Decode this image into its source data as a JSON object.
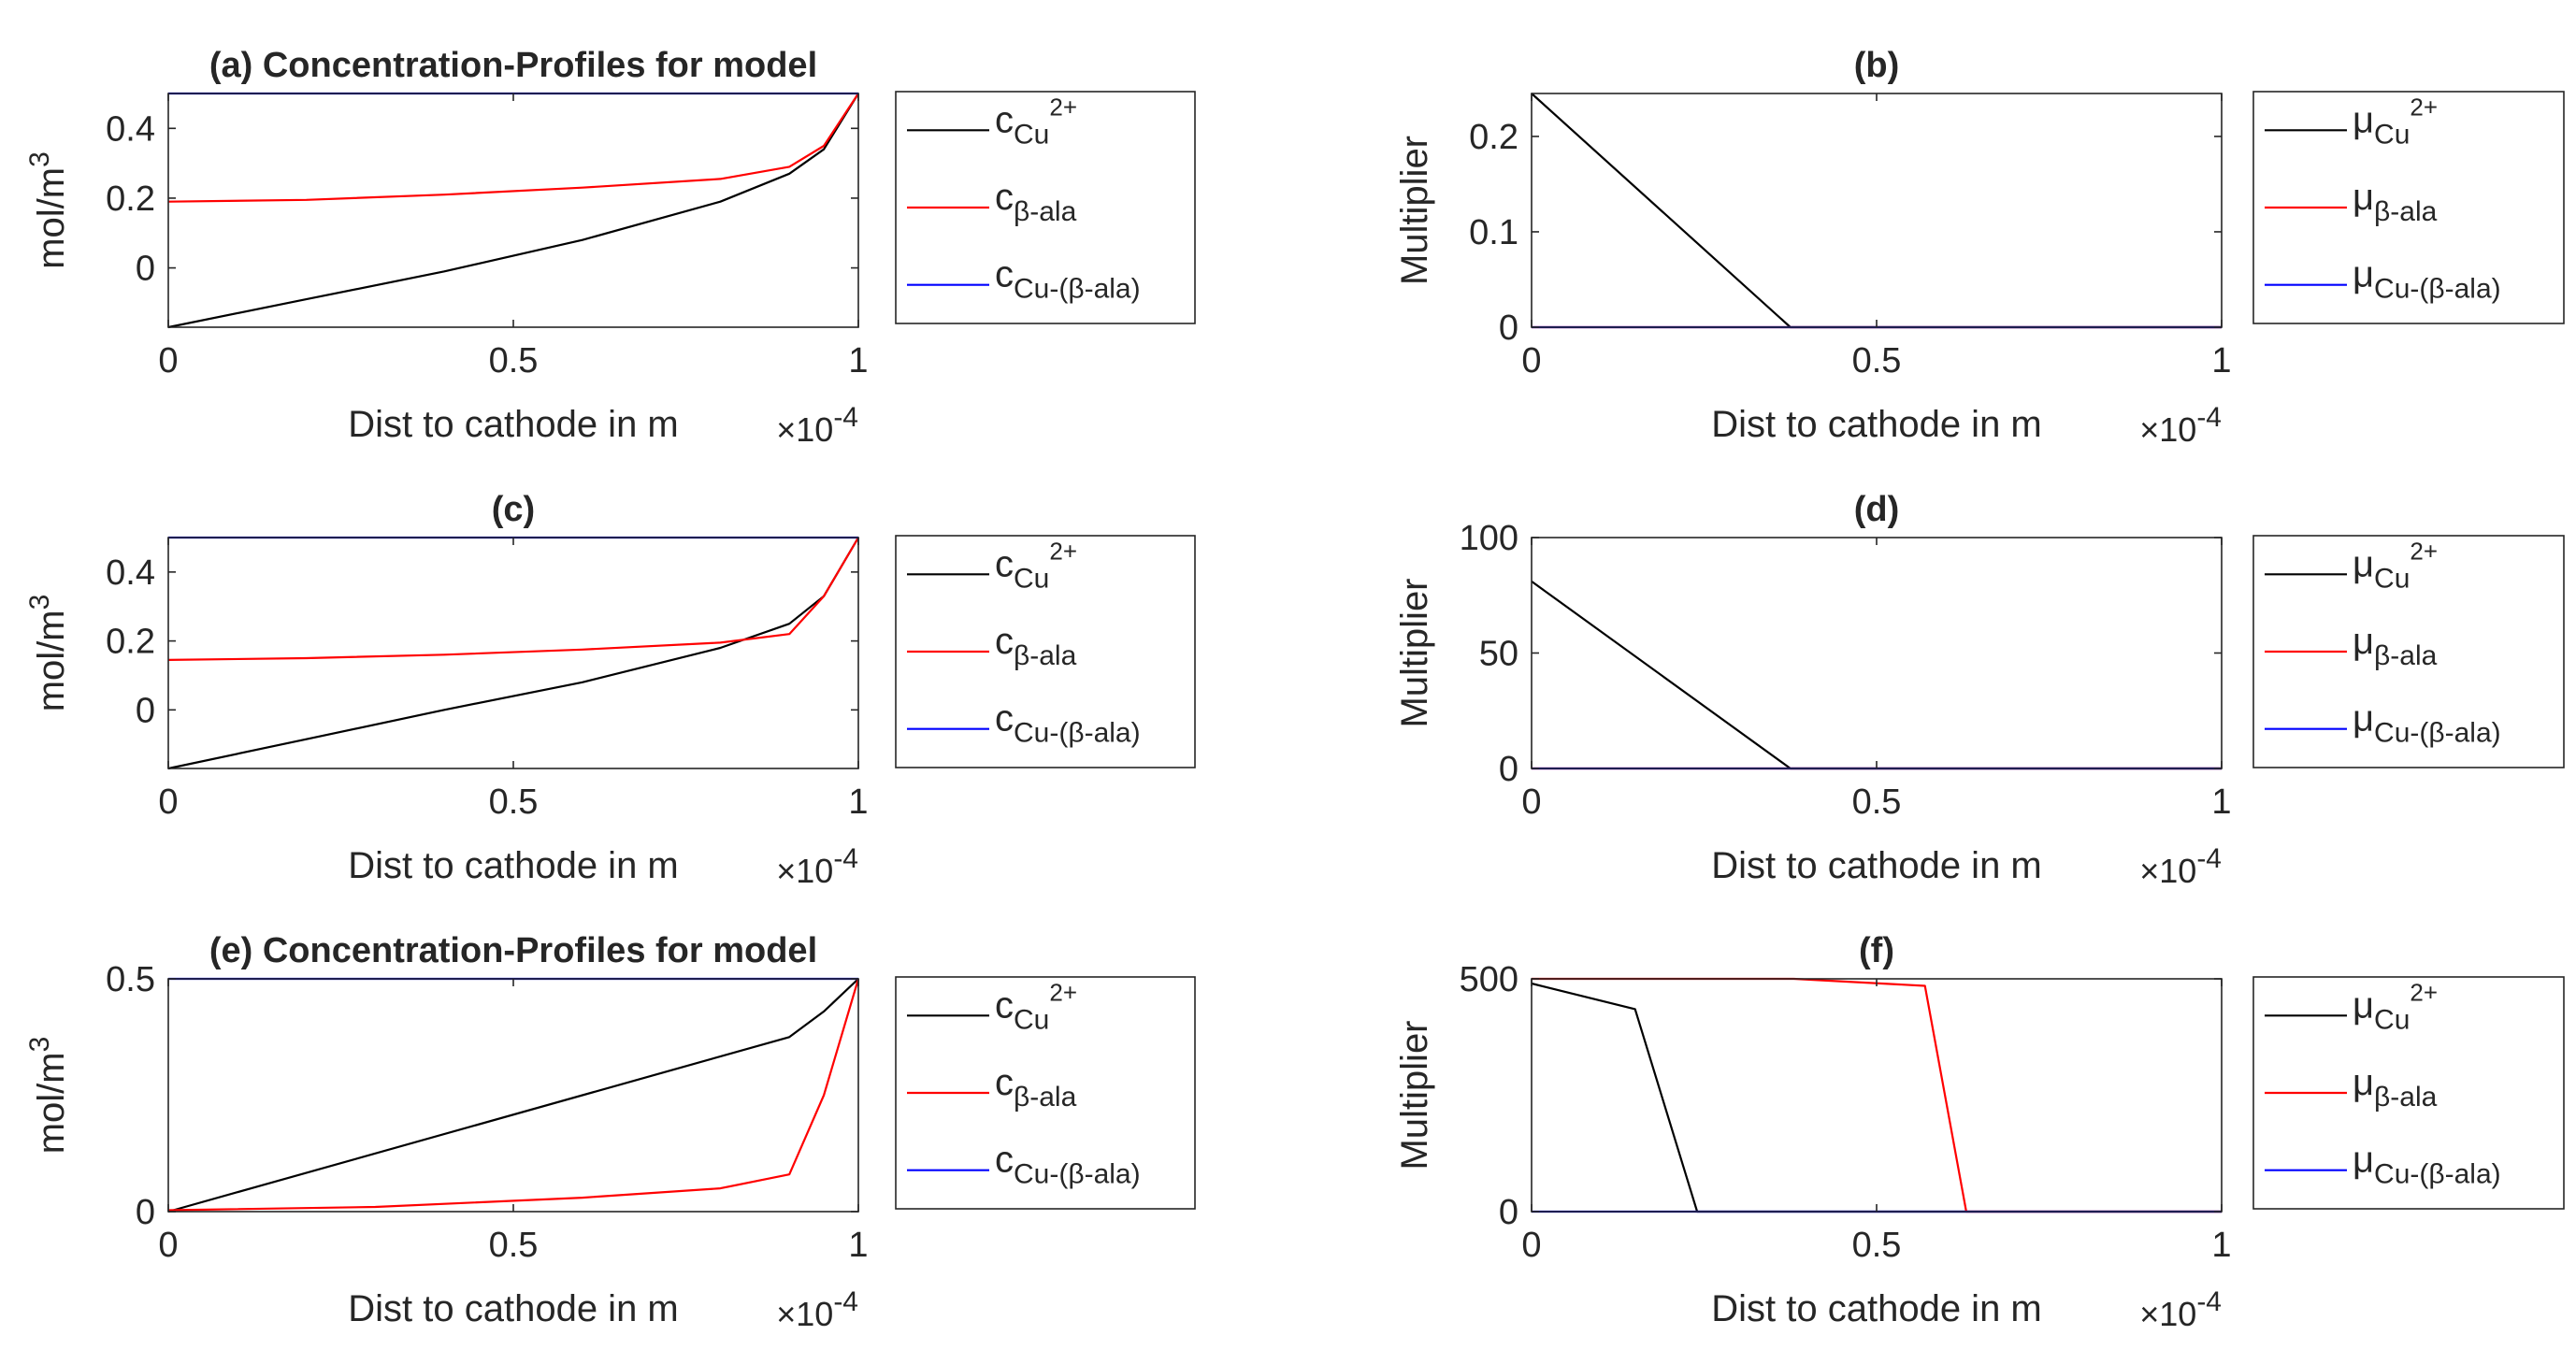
{
  "chart_data": [
    {
      "id": "a",
      "type": "line",
      "title": "(a) Concentration-Profiles for model",
      "xlabel": "Dist to cathode in m",
      "x_exponent": "×10-4",
      "ylabel": "mol/m3",
      "xlim": [
        0,
        1
      ],
      "ylim": [
        -0.17,
        0.5
      ],
      "xticks": [
        "0",
        "0.5",
        "1"
      ],
      "yticks": [
        {
          "v": 0,
          "label": "0"
        },
        {
          "v": 0.2,
          "label": "0.2"
        },
        {
          "v": 0.4,
          "label": "0.4"
        }
      ],
      "legend": {
        "position": "outside-right"
      },
      "series": [
        {
          "name": "c",
          "sub": "Cu",
          "sup": "2+",
          "greek": false,
          "color": "#000000",
          "x": [
            0,
            0.2,
            0.4,
            0.6,
            0.8,
            0.9,
            0.95,
            1.0
          ],
          "y": [
            -0.17,
            -0.09,
            -0.01,
            0.08,
            0.19,
            0.27,
            0.34,
            0.5
          ]
        },
        {
          "name": "c",
          "sub": "β-ala",
          "sup": "",
          "greek": false,
          "color": "#ff0000",
          "x": [
            0,
            0.2,
            0.4,
            0.6,
            0.8,
            0.9,
            0.95,
            1.0
          ],
          "y": [
            0.19,
            0.195,
            0.21,
            0.23,
            0.255,
            0.29,
            0.35,
            0.5
          ]
        },
        {
          "name": "c",
          "sub": "Cu-(β-ala)",
          "sup": "",
          "greek": false,
          "color": "#0000ff",
          "x": [
            0,
            1
          ],
          "y": [
            0.5,
            0.5
          ]
        }
      ]
    },
    {
      "id": "b",
      "type": "line",
      "title": "(b)",
      "xlabel": "Dist to cathode in m",
      "x_exponent": "×10-4",
      "ylabel": "Multiplier",
      "xlim": [
        0,
        1
      ],
      "ylim": [
        0,
        0.245
      ],
      "xticks": [
        "0",
        "0.5",
        "1"
      ],
      "yticks": [
        {
          "v": 0,
          "label": "0"
        },
        {
          "v": 0.1,
          "label": "0.1"
        },
        {
          "v": 0.2,
          "label": "0.2"
        }
      ],
      "legend": {
        "position": "outside-right"
      },
      "series": [
        {
          "name": "μ",
          "sub": "Cu",
          "sup": "2+",
          "greek": true,
          "color": "#000000",
          "x": [
            0,
            0.375,
            1.0
          ],
          "y": [
            0.245,
            0,
            0
          ]
        },
        {
          "name": "μ",
          "sub": "β-ala",
          "sup": "",
          "greek": true,
          "color": "#ff0000",
          "x": [
            0,
            1
          ],
          "y": [
            0,
            0
          ]
        },
        {
          "name": "μ",
          "sub": "Cu-(β-ala)",
          "sup": "",
          "greek": true,
          "color": "#0000ff",
          "x": [
            0,
            1
          ],
          "y": [
            0,
            0
          ]
        }
      ]
    },
    {
      "id": "c",
      "type": "line",
      "title": "(c)",
      "xlabel": "Dist to cathode in m",
      "x_exponent": "×10-4",
      "ylabel": "mol/m3",
      "xlim": [
        0,
        1
      ],
      "ylim": [
        -0.17,
        0.5
      ],
      "xticks": [
        "0",
        "0.5",
        "1"
      ],
      "yticks": [
        {
          "v": 0,
          "label": "0"
        },
        {
          "v": 0.2,
          "label": "0.2"
        },
        {
          "v": 0.4,
          "label": "0.4"
        }
      ],
      "legend": {
        "position": "outside-right"
      },
      "series": [
        {
          "name": "c",
          "sub": "Cu",
          "sup": "2+",
          "greek": false,
          "color": "#000000",
          "x": [
            0,
            0.2,
            0.4,
            0.6,
            0.8,
            0.9,
            0.95,
            1.0
          ],
          "y": [
            -0.17,
            -0.085,
            0.0,
            0.08,
            0.18,
            0.25,
            0.33,
            0.5
          ]
        },
        {
          "name": "c",
          "sub": "β-ala",
          "sup": "",
          "greek": false,
          "color": "#ff0000",
          "x": [
            0,
            0.2,
            0.4,
            0.6,
            0.8,
            0.9,
            0.95,
            1.0
          ],
          "y": [
            0.145,
            0.15,
            0.16,
            0.175,
            0.195,
            0.22,
            0.33,
            0.5
          ]
        },
        {
          "name": "c",
          "sub": "Cu-(β-ala)",
          "sup": "",
          "greek": false,
          "color": "#0000ff",
          "x": [
            0,
            1
          ],
          "y": [
            0.5,
            0.5
          ]
        }
      ]
    },
    {
      "id": "d",
      "type": "line",
      "title": "(d)",
      "xlabel": "Dist to cathode in m",
      "x_exponent": "×10-4",
      "ylabel": "Multiplier",
      "xlim": [
        0,
        1
      ],
      "ylim": [
        0,
        100
      ],
      "xticks": [
        "0",
        "0.5",
        "1"
      ],
      "yticks": [
        {
          "v": 0,
          "label": "0"
        },
        {
          "v": 50,
          "label": "50"
        },
        {
          "v": 100,
          "label": "100"
        }
      ],
      "legend": {
        "position": "outside-right"
      },
      "series": [
        {
          "name": "μ",
          "sub": "Cu",
          "sup": "2+",
          "greek": true,
          "color": "#000000",
          "x": [
            0,
            0.375,
            1.0
          ],
          "y": [
            81,
            0,
            0
          ]
        },
        {
          "name": "μ",
          "sub": "β-ala",
          "sup": "",
          "greek": true,
          "color": "#ff0000",
          "x": [
            0,
            1
          ],
          "y": [
            0,
            0
          ]
        },
        {
          "name": "μ",
          "sub": "Cu-(β-ala)",
          "sup": "",
          "greek": true,
          "color": "#0000ff",
          "x": [
            0,
            1
          ],
          "y": [
            0,
            0
          ]
        }
      ]
    },
    {
      "id": "e",
      "type": "line",
      "title": "(e) Concentration-Profiles for model",
      "xlabel": "Dist to cathode in m",
      "x_exponent": "×10-4",
      "ylabel": "mol/m3",
      "xlim": [
        0,
        1
      ],
      "ylim": [
        0,
        0.5
      ],
      "xticks": [
        "0",
        "0.5",
        "1"
      ],
      "yticks": [
        {
          "v": 0,
          "label": "0"
        },
        {
          "v": 0.5,
          "label": "0.5"
        }
      ],
      "legend": {
        "position": "outside-right"
      },
      "series": [
        {
          "name": "c",
          "sub": "Cu",
          "sup": "2+",
          "greek": false,
          "color": "#000000",
          "x": [
            0,
            0.9,
            0.95,
            1.0
          ],
          "y": [
            0.0,
            0.375,
            0.43,
            0.5
          ]
        },
        {
          "name": "c",
          "sub": "β-ala",
          "sup": "",
          "greek": false,
          "color": "#ff0000",
          "x": [
            0,
            0.3,
            0.6,
            0.8,
            0.9,
            0.95,
            1.0
          ],
          "y": [
            0.003,
            0.01,
            0.03,
            0.05,
            0.08,
            0.25,
            0.5
          ]
        },
        {
          "name": "c",
          "sub": "Cu-(β-ala)",
          "sup": "",
          "greek": false,
          "color": "#0000ff",
          "x": [
            0,
            1
          ],
          "y": [
            0.5,
            0.5
          ]
        }
      ]
    },
    {
      "id": "f",
      "type": "line",
      "title": "(f)",
      "xlabel": "Dist to cathode in m",
      "x_exponent": "×10-4",
      "ylabel": "Multiplier",
      "xlim": [
        0,
        1
      ],
      "ylim": [
        0,
        500
      ],
      "xticks": [
        "0",
        "0.5",
        "1"
      ],
      "yticks": [
        {
          "v": 0,
          "label": "0"
        },
        {
          "v": 500,
          "label": "500"
        }
      ],
      "legend": {
        "position": "outside-right"
      },
      "series": [
        {
          "name": "μ",
          "sub": "Cu",
          "sup": "2+",
          "greek": true,
          "color": "#000000",
          "x": [
            0,
            0.15,
            0.24,
            1.0
          ],
          "y": [
            490,
            435,
            0,
            0
          ]
        },
        {
          "name": "μ",
          "sub": "β-ala",
          "sup": "",
          "greek": true,
          "color": "#ff0000",
          "x": [
            0,
            0.38,
            0.57,
            0.63,
            1.0
          ],
          "y": [
            500,
            500,
            485,
            0,
            0
          ]
        },
        {
          "name": "μ",
          "sub": "Cu-(β-ala)",
          "sup": "",
          "greek": true,
          "color": "#0000ff",
          "x": [
            0,
            1
          ],
          "y": [
            0,
            0
          ]
        }
      ]
    }
  ]
}
